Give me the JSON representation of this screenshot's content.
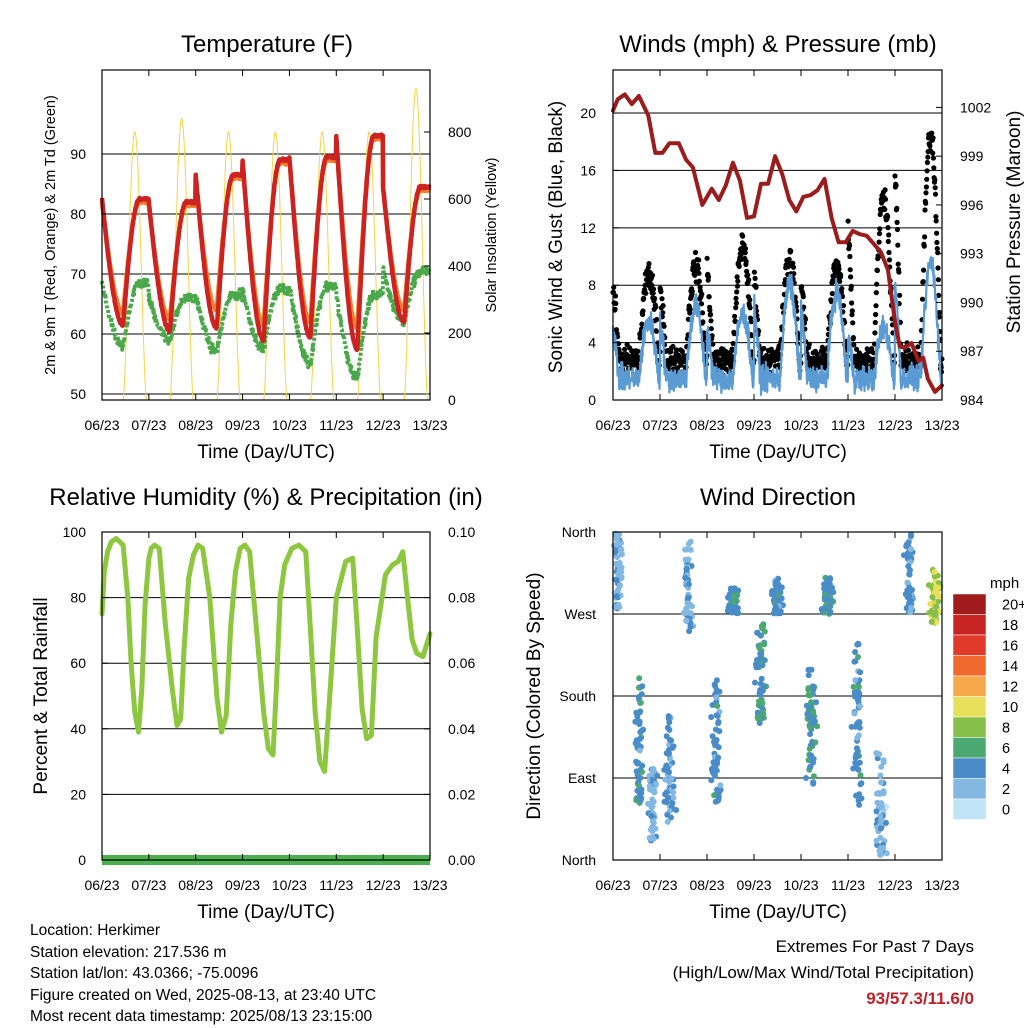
{
  "page": {
    "footer_left": [
      "Location: Herkimer",
      "Station elevation: 217.536 m",
      "Station lat/lon: 43.0366; -75.0096",
      "Figure created on Wed, 2025-08-13, at 23:40 UTC",
      "Most recent data timestamp: 2025/08/13 23:15:00"
    ],
    "extremes_title": "Extremes For Past 7 Days",
    "extremes_subtitle": "(High/Low/Max Wind/Total Precipitation)",
    "extremes_values": "93/57.3/11.6/0",
    "extremes_color": "#c0202a"
  },
  "chart_data": [
    {
      "id": "temperature",
      "type": "line",
      "title": "Temperature (F)",
      "xlabel": "Time (Day/UTC)",
      "ylabel": "2m & 9m T (Red, Orange) & 2m Td (Green)",
      "ylabel_right": "Solar Insolation (Yellow)",
      "x_ticks": [
        "06/23",
        "07/23",
        "08/23",
        "09/23",
        "10/23",
        "11/23",
        "12/23",
        "13/23"
      ],
      "xlim_days": [
        0,
        7
      ],
      "ylim": [
        49,
        104
      ],
      "y_ticks": [
        50,
        60,
        70,
        80,
        90
      ],
      "ylim_right": [
        0,
        985
      ],
      "y_ticks_right": [
        0,
        200,
        400,
        600,
        800
      ],
      "grid_y": [
        50,
        60,
        70,
        80,
        90
      ],
      "colors": {
        "t2m": "#cc2222",
        "t9m": "#f07e2a",
        "td2m": "#4aa84a",
        "solar": "#f5d442"
      },
      "series": [
        {
          "name": "2m T",
          "color": "#cc2222",
          "max": [
            82.5,
            82.0,
            86.5,
            89.0,
            89.5,
            93.0,
            84.5
          ],
          "min": [
            61.5,
            60.5,
            61.0,
            59.0,
            59.5,
            57.5,
            62.0
          ],
          "end_value": 80.5
        },
        {
          "name": "9m T",
          "color": "#f07e2a",
          "max": [
            82.0,
            81.5,
            86.0,
            88.5,
            89.0,
            92.5,
            84.0
          ],
          "min": [
            63.5,
            62.5,
            64.0,
            61.5,
            62.0,
            61.0,
            64.0
          ],
          "end_value": 80.5
        },
        {
          "name": "2m Td",
          "color": "#4aa84a",
          "max": [
            68.5,
            66.0,
            66.5,
            67.5,
            68.0,
            66.5,
            70.5
          ],
          "min": [
            58.0,
            59.0,
            57.0,
            57.5,
            55.0,
            52.5,
            62.0
          ],
          "end_value": 69.0
        },
        {
          "name": "Solar Insolation",
          "color": "#f5d442",
          "daily_peak": [
            800,
            840,
            800,
            800,
            800,
            800,
            930
          ]
        }
      ]
    },
    {
      "id": "winds",
      "type": "scatter",
      "title": "Winds (mph) & Pressure (mb)",
      "xlabel": "Time (Day/UTC)",
      "ylabel": "Sonic Wind & Gust (Blue, Black)",
      "ylabel_right": "Station Pressure (Maroon)",
      "x_ticks": [
        "06/23",
        "07/23",
        "08/23",
        "09/23",
        "10/23",
        "11/23",
        "12/23",
        "13/23"
      ],
      "xlim_days": [
        0,
        7
      ],
      "ylim": [
        0,
        23
      ],
      "y_ticks": [
        0,
        4,
        8,
        12,
        16,
        20
      ],
      "ylim_right": [
        984,
        1004.3
      ],
      "y_ticks_right": [
        984,
        987,
        990,
        993,
        996,
        999,
        1002
      ],
      "colors": {
        "wind": "#5a9bd4",
        "gust": "#000000",
        "pressure": "#9b1c1c"
      },
      "series": [
        {
          "name": "Sonic Wind",
          "color": "#5a9bd4",
          "daily_max": [
            7.5,
            8.5,
            8.0,
            10.0,
            9.5,
            7.0,
            11.6
          ]
        },
        {
          "name": "Gust",
          "color": "#000000",
          "daily_max": [
            10.5,
            11.0,
            12.5,
            11.5,
            11.0,
            16.0,
            20.2
          ]
        },
        {
          "name": "Station Pressure",
          "color": "#9b1c1c",
          "x": [
            0,
            0.1,
            0.25,
            0.4,
            0.55,
            0.75,
            0.9,
            1.05,
            1.2,
            1.4,
            1.55,
            1.7,
            1.9,
            2.1,
            2.25,
            2.4,
            2.55,
            2.7,
            2.85,
            3.0,
            3.15,
            3.3,
            3.45,
            3.6,
            3.75,
            3.9,
            4.05,
            4.2,
            4.35,
            4.5,
            4.65,
            4.8,
            4.95,
            5.1,
            5.25,
            5.4,
            5.55,
            5.7,
            5.85,
            6.0,
            6.1,
            6.2,
            6.35,
            6.5,
            6.6,
            6.7,
            6.85,
            7.0
          ],
          "y": [
            1001.8,
            1002.5,
            1002.8,
            1002.2,
            1002.7,
            1001.5,
            999.2,
            999.2,
            999.8,
            999.8,
            998.8,
            998.3,
            996.0,
            997.0,
            996.3,
            997.2,
            998.6,
            997.5,
            995.2,
            995.3,
            997.3,
            997.3,
            999.0,
            997.9,
            996.3,
            995.6,
            996.5,
            996.6,
            996.9,
            997.6,
            995.2,
            993.7,
            993.7,
            994.4,
            994.2,
            994.1,
            993.6,
            993.1,
            992.0,
            988.8,
            987.3,
            987.2,
            987.5,
            986.4,
            986.6,
            985.3,
            984.5,
            984.9
          ]
        }
      ]
    },
    {
      "id": "humidity",
      "type": "line",
      "title": "Relative Humidity (%) & Precipitation (in)",
      "xlabel": "Time (Day/UTC)",
      "ylabel": "Percent & Total Rainfall",
      "x_ticks": [
        "06/23",
        "07/23",
        "08/23",
        "09/23",
        "10/23",
        "11/23",
        "12/23",
        "13/23"
      ],
      "xlim_days": [
        0,
        7
      ],
      "ylim": [
        0,
        100
      ],
      "y_ticks": [
        0,
        20,
        40,
        60,
        80,
        100
      ],
      "ylim_right": [
        0,
        0.1
      ],
      "y_ticks_right": [
        "0.00",
        "0.02",
        "0.04",
        "0.06",
        "0.08",
        "0.10"
      ],
      "colors": {
        "rh": "#8dc63f",
        "precip": "#4caf50"
      },
      "series": [
        {
          "name": "Relative Humidity",
          "color": "#8dc63f",
          "x": [
            0,
            0.05,
            0.12,
            0.2,
            0.3,
            0.45,
            0.55,
            0.62,
            0.7,
            0.78,
            0.85,
            0.92,
            1.0,
            1.05,
            1.12,
            1.22,
            1.35,
            1.5,
            1.6,
            1.68,
            1.75,
            1.85,
            1.95,
            2.05,
            2.15,
            2.3,
            2.45,
            2.55,
            2.65,
            2.75,
            2.85,
            2.95,
            3.05,
            3.15,
            3.3,
            3.45,
            3.55,
            3.65,
            3.72,
            3.8,
            3.9,
            4.05,
            4.2,
            4.35,
            4.45,
            4.55,
            4.65,
            4.75,
            4.85,
            5.0,
            5.2,
            5.35,
            5.45,
            5.55,
            5.65,
            5.75,
            5.85,
            6.05,
            6.2,
            6.32,
            6.42,
            6.52,
            6.62,
            6.72,
            6.85,
            7.0
          ],
          "y": [
            75,
            88,
            94,
            97,
            98,
            96,
            80,
            60,
            45,
            39,
            52,
            78,
            92,
            95,
            96,
            95,
            72,
            52,
            41,
            43,
            64,
            86,
            93,
            96,
            95,
            80,
            50,
            39,
            44,
            72,
            88,
            95,
            96,
            94,
            70,
            45,
            34,
            32,
            52,
            80,
            90,
            95,
            96,
            94,
            70,
            45,
            30,
            27,
            48,
            80,
            91,
            92,
            70,
            46,
            37,
            38,
            68,
            87,
            90,
            91,
            94,
            80,
            67,
            63,
            62,
            69
          ]
        },
        {
          "name": "Total Precipitation",
          "color": "#4caf50",
          "x": [
            0,
            7
          ],
          "y": [
            0,
            0
          ]
        }
      ]
    },
    {
      "id": "wind_direction",
      "type": "scatter",
      "title": "Wind Direction",
      "xlabel": "Time (Day/UTC)",
      "ylabel": "Direction (Colored By Speed)",
      "x_ticks": [
        "06/23",
        "07/23",
        "08/23",
        "09/23",
        "10/23",
        "11/23",
        "12/23",
        "13/23"
      ],
      "xlim_days": [
        0,
        7
      ],
      "y_categories": [
        "North",
        "West",
        "South",
        "East",
        "North"
      ],
      "ylim_degrees": [
        0,
        360
      ],
      "legend": {
        "title": "mph",
        "labels": [
          "20+",
          "18",
          "16",
          "14",
          "12",
          "10",
          "8",
          "6",
          "4",
          "2",
          "0"
        ],
        "colors": [
          "#a01c1c",
          "#c82424",
          "#e03a2a",
          "#f06a30",
          "#f7a84a",
          "#e8e05a",
          "#86c04a",
          "#4aa870",
          "#4a8cc8",
          "#82b8e2",
          "#bfe4f7"
        ]
      },
      "clusters": [
        {
          "center_day": 0.12,
          "dir_lo": 270,
          "dir_hi": 360,
          "speed": 2.5
        },
        {
          "center_day": 0.55,
          "dir_lo": 60,
          "dir_hi": 200,
          "speed": 4.5
        },
        {
          "center_day": 0.85,
          "dir_lo": 20,
          "dir_hi": 100,
          "speed": 2.5
        },
        {
          "center_day": 1.2,
          "dir_lo": 40,
          "dir_hi": 160,
          "speed": 3.5
        },
        {
          "center_day": 1.6,
          "dir_lo": 250,
          "dir_hi": 350,
          "speed": 3
        },
        {
          "center_day": 2.2,
          "dir_lo": 60,
          "dir_hi": 200,
          "speed": 4
        },
        {
          "center_day": 2.55,
          "dir_lo": 270,
          "dir_hi": 300,
          "speed": 4.5
        },
        {
          "center_day": 3.15,
          "dir_lo": 150,
          "dir_hi": 260,
          "speed": 5
        },
        {
          "center_day": 3.5,
          "dir_lo": 270,
          "dir_hi": 310,
          "speed": 4
        },
        {
          "center_day": 4.2,
          "dir_lo": 80,
          "dir_hi": 210,
          "speed": 5
        },
        {
          "center_day": 4.55,
          "dir_lo": 270,
          "dir_hi": 310,
          "speed": 4.5
        },
        {
          "center_day": 5.2,
          "dir_lo": 60,
          "dir_hi": 240,
          "speed": 4
        },
        {
          "center_day": 5.7,
          "dir_lo": 0,
          "dir_hi": 120,
          "speed": 2.5
        },
        {
          "center_day": 6.3,
          "dir_lo": 270,
          "dir_hi": 360,
          "speed": 3.5
        },
        {
          "center_day": 6.85,
          "dir_lo": 260,
          "dir_hi": 320,
          "speed": 9
        }
      ]
    }
  ]
}
